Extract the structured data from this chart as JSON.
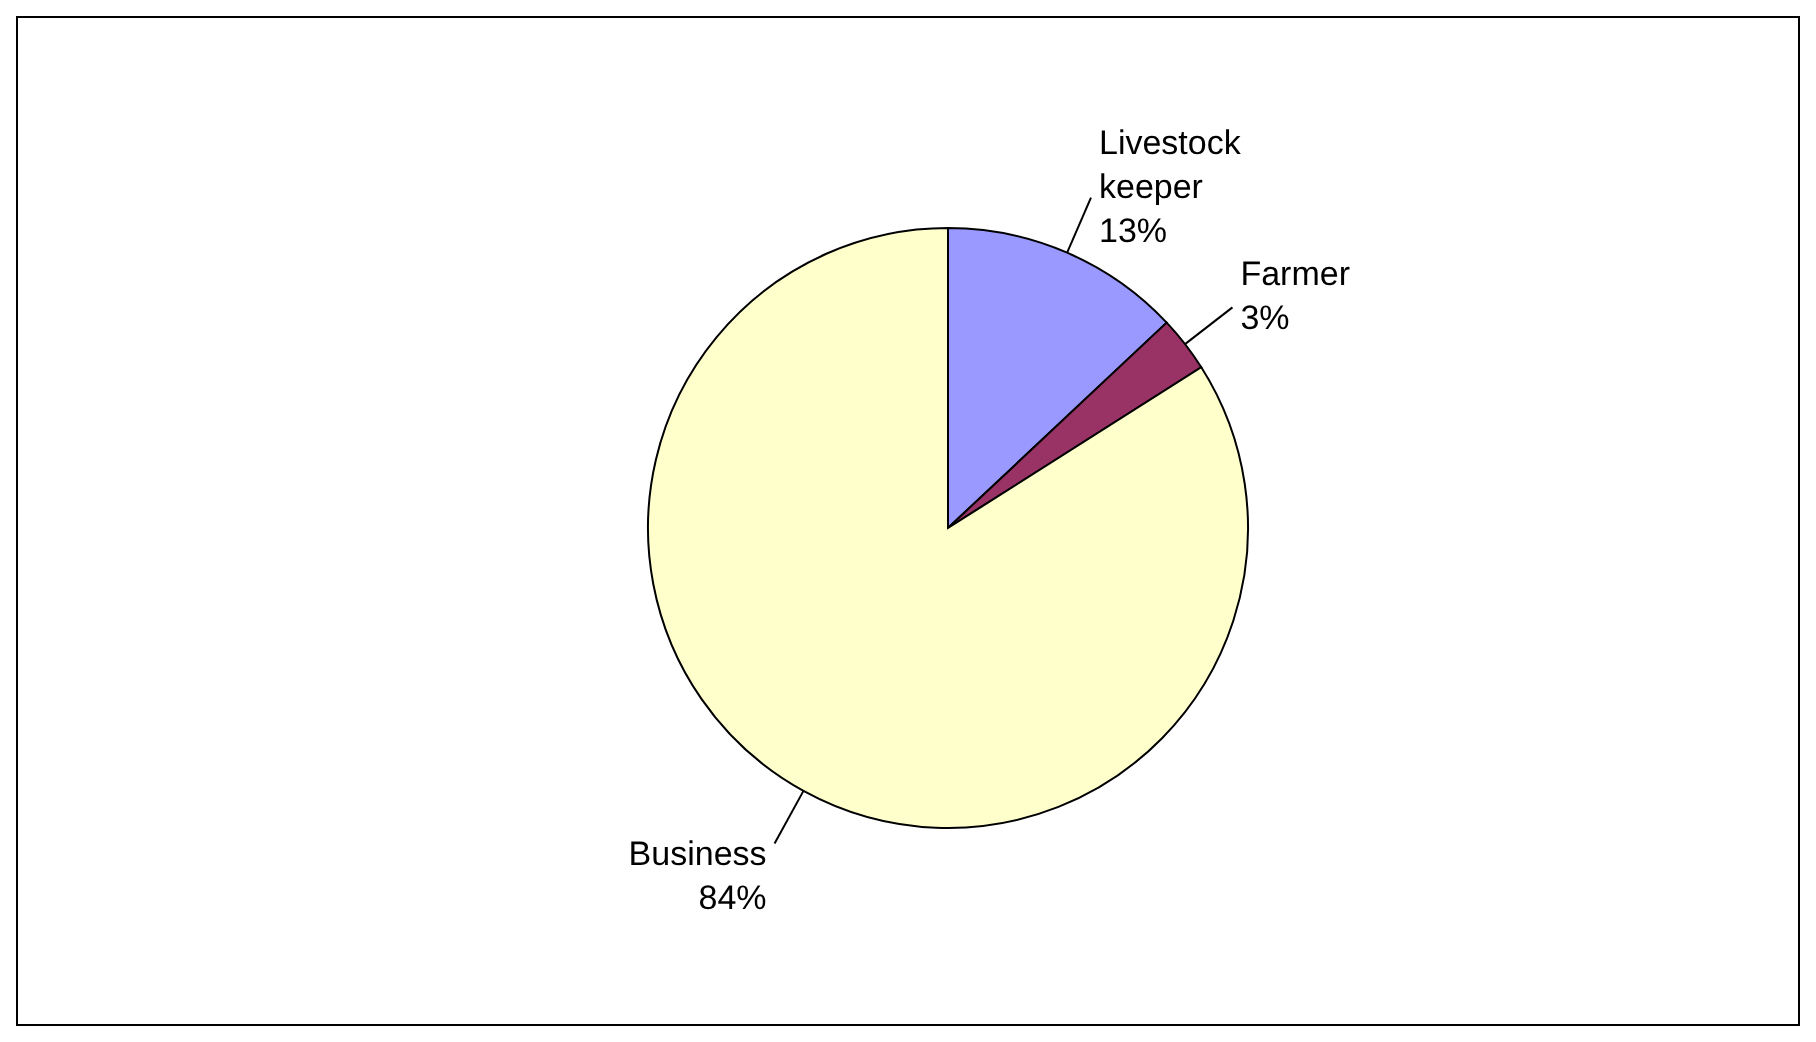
{
  "chart_data": {
    "type": "pie",
    "categories": [
      "Livestock keeper",
      "Farmer",
      "Business"
    ],
    "values": [
      13,
      3,
      84
    ],
    "colors": [
      "#9999ff",
      "#993366",
      "#ffffcc"
    ],
    "value_labels": [
      "13%",
      "3%",
      "84%"
    ]
  }
}
